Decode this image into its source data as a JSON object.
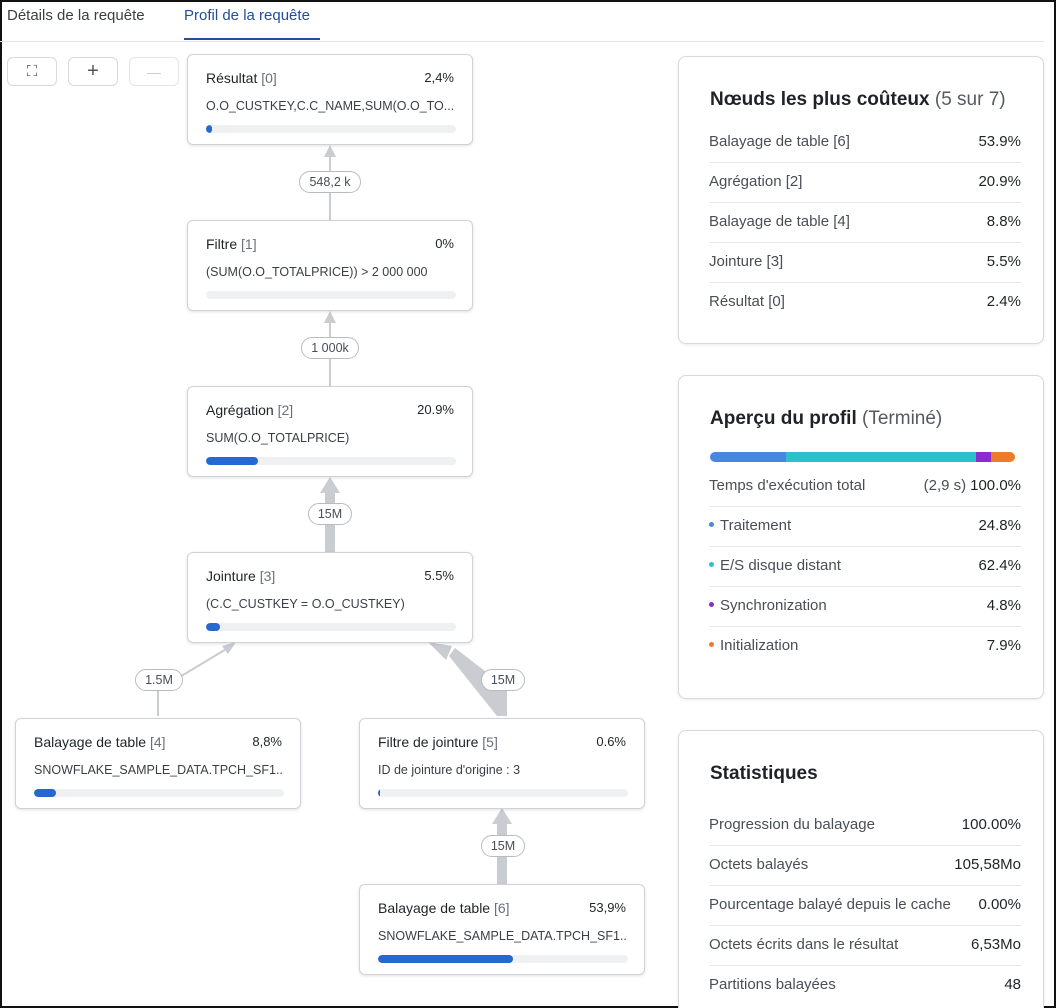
{
  "tabs": [
    {
      "label": "Détails de la requête",
      "active": false
    },
    {
      "label": "Profil de la requête",
      "active": true
    }
  ],
  "toolbar": {
    "fit_icon": "⛶",
    "zoom_in_icon": "+",
    "zoom_out_icon": "—"
  },
  "nodes": {
    "result": {
      "name": "Résultat",
      "index": "[0]",
      "percent": "2,4%",
      "expr": "O.O_CUSTKEY,C.C_NAME,SUM(O.O_TO...",
      "fill": 0.024
    },
    "filter": {
      "name": "Filtre",
      "index": "[1]",
      "percent": "0%",
      "expr": "(SUM(O.O_TOTALPRICE)) > 2 000 000",
      "fill": 0
    },
    "aggregate": {
      "name": "Agrégation",
      "index": "[2]",
      "percent": "20.9%",
      "expr": "SUM(O.O_TOTALPRICE)",
      "fill": 0.209
    },
    "join": {
      "name": "Jointure",
      "index": "[3]",
      "percent": "5.5%",
      "expr": "(C.C_CUSTKEY = O.O_CUSTKEY)",
      "fill": 0.055
    },
    "scan4": {
      "name": "Balayage de table",
      "index": "[4]",
      "percent": "8,8%",
      "expr": "SNOWFLAKE_SAMPLE_DATA.TPCH_SF1...",
      "fill": 0.088
    },
    "joinfilter": {
      "name": "Filtre de jointure",
      "index": "[5]",
      "percent": "0.6%",
      "expr": "ID de jointure d'origine : 3",
      "fill": 0.006
    },
    "scan6": {
      "name": "Balayage de table",
      "index": "[6]",
      "percent": "53,9%",
      "expr": "SNOWFLAKE_SAMPLE_DATA.TPCH_SF1...",
      "fill": 0.539
    }
  },
  "edges": {
    "e1": "548,2 k",
    "e2": "1 000k",
    "e3": "15M",
    "e4": "1.5M",
    "e5": "15M",
    "e6": "15M"
  },
  "costly": {
    "title": "Nœuds les plus coûteux",
    "subtitle": "(5 sur 7)",
    "rows": [
      {
        "label": "Balayage de table [6]",
        "value": "53.9%"
      },
      {
        "label": "Agrégation [2]",
        "value": "20.9%"
      },
      {
        "label": "Balayage de table [4]",
        "value": "8.8%"
      },
      {
        "label": "Jointure [3]",
        "value": "5.5%"
      },
      {
        "label": "Résultat [0]",
        "value": "2.4%"
      }
    ]
  },
  "overview": {
    "title": "Aperçu du profil",
    "subtitle": "(Terminé)",
    "total_label": "Temps d'exécution total",
    "total_time": "(2,9 s)",
    "total_value": "100.0%",
    "segments": [
      {
        "label": "Traitement",
        "value": "24.8%",
        "share": 24.8,
        "color": "#4a86e0"
      },
      {
        "label": "E/S disque distant",
        "value": "62.4%",
        "share": 62.4,
        "color": "#29c2c7"
      },
      {
        "label": "Synchronization",
        "value": "4.8%",
        "share": 4.8,
        "color": "#8a2bd6"
      },
      {
        "label": "Initialization",
        "value": "7.9%",
        "share": 7.9,
        "color": "#ef7a2a"
      }
    ]
  },
  "stats": {
    "title": "Statistiques",
    "rows": [
      {
        "label": "Progression du balayage",
        "value": "100.00%"
      },
      {
        "label": "Octets balayés",
        "value": "105,58Mo"
      },
      {
        "label": "Pourcentage balayé depuis le cache",
        "value": "0.00%"
      },
      {
        "label": "Octets écrits dans le résultat",
        "value": "6,53Mo"
      },
      {
        "label": "Partitions balayées",
        "value": "48"
      }
    ]
  }
}
